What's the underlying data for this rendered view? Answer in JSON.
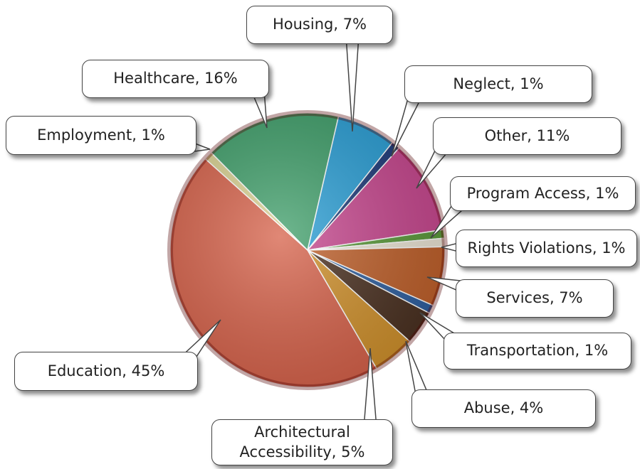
{
  "chart_data": {
    "type": "pie",
    "value_labels": [
      "Housing, 7%",
      "Neglect, 1%",
      "Other, 11%",
      "Program Access, 1%",
      "Rights Violations, 1%",
      "Services, 7%",
      "Transportation, 1%",
      "Abuse, 4%",
      "Architectural\nAccessibility, 5%",
      "Education, 45%",
      "Employment, 1%",
      "Healthcare, 16%"
    ],
    "values": [
      7,
      1,
      11,
      1,
      1,
      7,
      1,
      4,
      5,
      45,
      1,
      16
    ],
    "colors": [
      "#2a9fd6",
      "#1d3a7a",
      "#c8478f",
      "#5a9a3a",
      "#ece6d6",
      "#c0602a",
      "#2e5fa0",
      "#4a3020",
      "#d0902a",
      "#d66048",
      "#d8d090",
      "#3f9f6a"
    ]
  }
}
